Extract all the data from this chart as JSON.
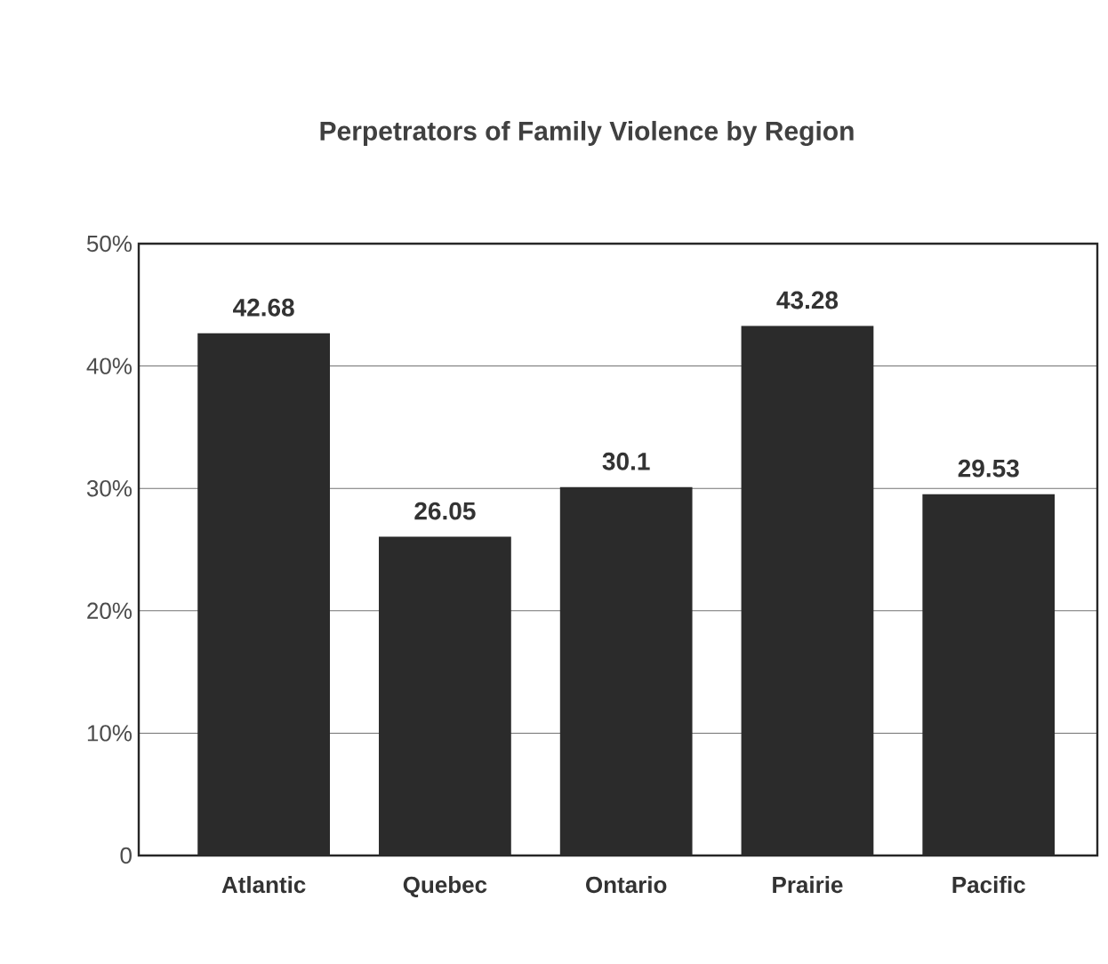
{
  "chart_data": {
    "type": "bar",
    "title": "Perpetrators of Family Violence by Region",
    "categories": [
      "Atlantic",
      "Quebec",
      "Ontario",
      "Prairie",
      "Pacific"
    ],
    "values": [
      42.68,
      26.05,
      30.1,
      43.28,
      29.53
    ],
    "color": "#2b2b2b",
    "ylim": [
      0,
      50
    ],
    "yticks": [
      0,
      {
        "value": 10,
        "label": "10%"
      },
      {
        "value": 20,
        "label": "20%"
      },
      {
        "value": 30,
        "label": "30%"
      },
      {
        "value": 40,
        "label": "40%"
      },
      {
        "value": 50,
        "label": "50%"
      }
    ],
    "grid": "y",
    "data_labels": true
  }
}
